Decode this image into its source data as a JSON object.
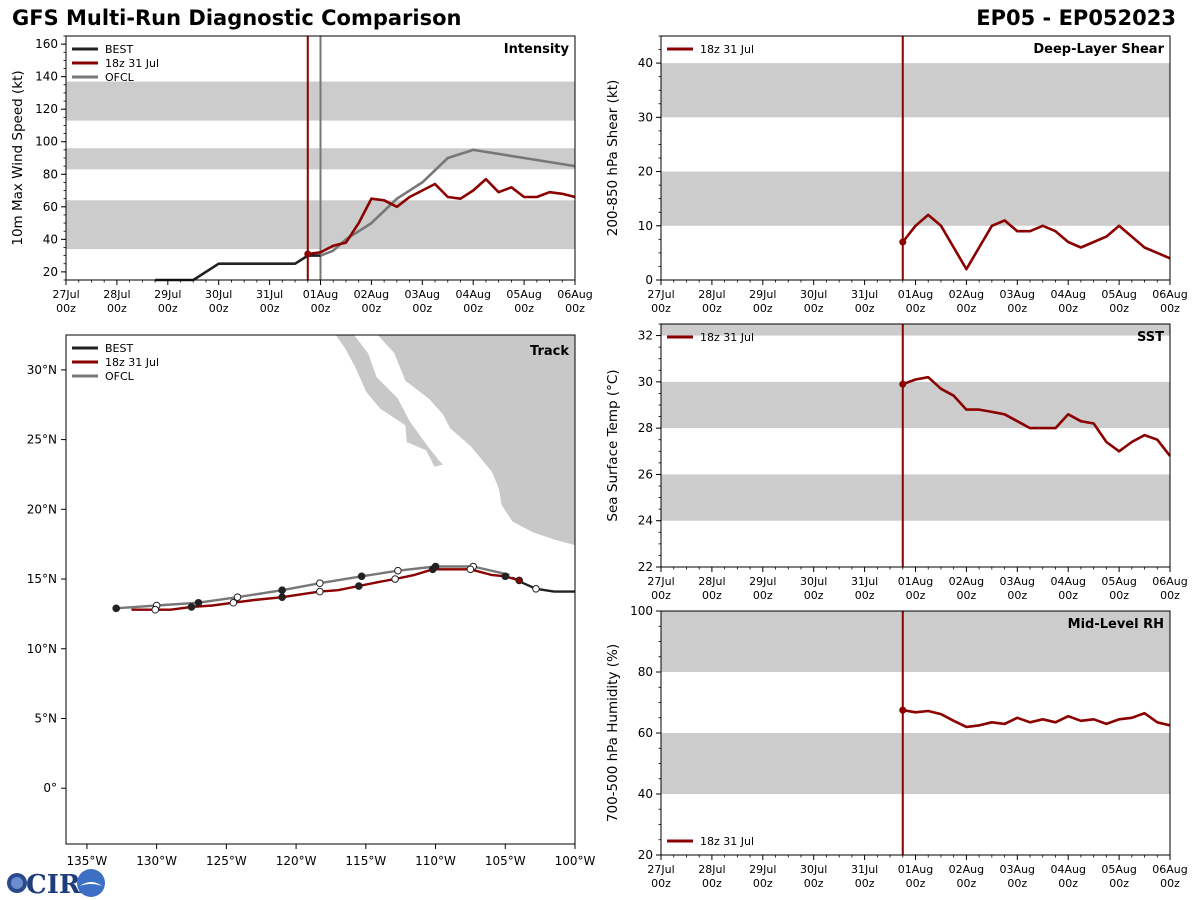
{
  "header": {
    "title": "GFS Multi-Run Diagnostic Comparison",
    "storm_id": "EP05 - EP052023"
  },
  "logo": {
    "text": "CIRA"
  },
  "colors": {
    "best": "#222222",
    "run": "#8b0000",
    "ofcl": "#777777",
    "band": "#cccccc",
    "land": "#c8c8c8"
  },
  "time_axis": {
    "ticks": [
      {
        "day": 0,
        "label": "27Jul",
        "hour": "00z"
      },
      {
        "day": 1,
        "label": "28Jul",
        "hour": "00z"
      },
      {
        "day": 2,
        "label": "29Jul",
        "hour": "00z"
      },
      {
        "day": 3,
        "label": "30Jul",
        "hour": "00z"
      },
      {
        "day": 4,
        "label": "31Jul",
        "hour": "00z"
      },
      {
        "day": 5,
        "label": "01Aug",
        "hour": "00z"
      },
      {
        "day": 6,
        "label": "02Aug",
        "hour": "00z"
      },
      {
        "day": 7,
        "label": "03Aug",
        "hour": "00z"
      },
      {
        "day": 8,
        "label": "04Aug",
        "hour": "00z"
      },
      {
        "day": 9,
        "label": "05Aug",
        "hour": "00z"
      },
      {
        "day": 10,
        "label": "06Aug",
        "hour": "00z"
      }
    ],
    "range_days": [
      0,
      10
    ]
  },
  "chart_data": [
    {
      "id": "intensity",
      "type": "line",
      "title": "Intensity",
      "xlabel": "",
      "ylabel": "10m Max Wind Speed (kt)",
      "ylim": [
        15,
        165
      ],
      "yticks": [
        20,
        40,
        60,
        80,
        100,
        120,
        140,
        160
      ],
      "bands": [
        [
          34,
          64
        ],
        [
          83,
          96
        ],
        [
          113,
          137
        ]
      ],
      "vlines": [
        {
          "x": 4.75,
          "color": "run"
        },
        {
          "x": 5.0,
          "color": "ofcl"
        }
      ],
      "legend": {
        "position": "top-left",
        "entries": [
          {
            "label": "BEST",
            "color": "best"
          },
          {
            "label": "18z 31 Jul",
            "color": "run"
          },
          {
            "label": "OFCL",
            "color": "ofcl"
          }
        ]
      },
      "series": [
        {
          "name": "BEST",
          "color": "best",
          "x": [
            1.75,
            2.5,
            3.0,
            3.5,
            4.0,
            4.5,
            4.75,
            5.0
          ],
          "y": [
            15,
            15,
            25,
            25,
            25,
            25,
            30,
            30
          ]
        },
        {
          "name": "OFCL",
          "color": "ofcl",
          "x": [
            5.0,
            5.25,
            5.5,
            6.0,
            6.5,
            7.0,
            7.5,
            8.0,
            9.0,
            10.0
          ],
          "y": [
            30,
            33,
            40,
            50,
            65,
            75,
            90,
            95,
            90,
            85
          ]
        },
        {
          "name": "18z 31 Jul",
          "color": "run",
          "marker_first": true,
          "x": [
            4.75,
            5.0,
            5.25,
            5.5,
            5.75,
            6.0,
            6.25,
            6.5,
            6.75,
            7.0,
            7.25,
            7.5,
            7.75,
            8.0,
            8.25,
            8.5,
            8.75,
            9.0,
            9.25,
            9.5,
            9.75,
            10.0
          ],
          "y": [
            31,
            32,
            36,
            38,
            50,
            65,
            64,
            60,
            66,
            70,
            74,
            66,
            65,
            70,
            77,
            69,
            72,
            66,
            66,
            69,
            68,
            66
          ]
        }
      ]
    },
    {
      "id": "shear",
      "type": "line",
      "title": "Deep-Layer Shear",
      "xlabel": "",
      "ylabel": "200-850 hPa Shear (kt)",
      "ylim": [
        0,
        45
      ],
      "yticks": [
        0,
        10,
        20,
        30,
        40
      ],
      "bands": [
        [
          10,
          20
        ],
        [
          30,
          40
        ]
      ],
      "vlines": [
        {
          "x": 4.75,
          "color": "run"
        }
      ],
      "legend": {
        "position": "top-left",
        "entries": [
          {
            "label": "18z 31 Jul",
            "color": "run"
          }
        ]
      },
      "series": [
        {
          "name": "18z 31 Jul",
          "color": "run",
          "marker_first": true,
          "x": [
            4.75,
            5.0,
            5.25,
            5.5,
            5.75,
            6.0,
            6.25,
            6.5,
            6.75,
            7.0,
            7.25,
            7.5,
            7.75,
            8.0,
            8.25,
            8.5,
            8.75,
            9.0,
            9.25,
            9.5,
            9.75,
            10.0
          ],
          "y": [
            7,
            10,
            12,
            10,
            6,
            2,
            6,
            10,
            11,
            9,
            9,
            10,
            9,
            7,
            6,
            7,
            8,
            10,
            8,
            6,
            5,
            4
          ]
        }
      ]
    },
    {
      "id": "sst",
      "type": "line",
      "title": "SST",
      "xlabel": "",
      "ylabel": "Sea Surface Temp (°C)",
      "ylim": [
        22,
        32.5
      ],
      "yticks": [
        22,
        24,
        26,
        28,
        30,
        32
      ],
      "bands": [
        [
          24,
          26
        ],
        [
          28,
          30
        ],
        [
          32,
          32.5
        ]
      ],
      "vlines": [
        {
          "x": 4.75,
          "color": "run"
        }
      ],
      "legend": {
        "position": "top-left",
        "entries": [
          {
            "label": "18z 31 Jul",
            "color": "run"
          }
        ]
      },
      "series": [
        {
          "name": "18z 31 Jul",
          "color": "run",
          "marker_first": true,
          "x": [
            4.75,
            5.0,
            5.25,
            5.5,
            5.75,
            6.0,
            6.25,
            6.5,
            6.75,
            7.0,
            7.25,
            7.5,
            7.75,
            8.0,
            8.25,
            8.5,
            8.75,
            9.0,
            9.25,
            9.5,
            9.75,
            10.0
          ],
          "y": [
            29.9,
            30.1,
            30.2,
            29.7,
            29.4,
            28.8,
            28.8,
            28.7,
            28.6,
            28.3,
            28.0,
            28.0,
            28.0,
            28.6,
            28.3,
            28.2,
            27.4,
            27.0,
            27.4,
            27.7,
            27.5,
            26.8
          ]
        }
      ]
    },
    {
      "id": "rh",
      "type": "line",
      "title": "Mid-Level RH",
      "xlabel": "",
      "ylabel": "700-500 hPa Humidity (%)",
      "ylim": [
        20,
        100
      ],
      "yticks": [
        20,
        40,
        60,
        80,
        100
      ],
      "bands": [
        [
          40,
          60
        ],
        [
          80,
          100
        ]
      ],
      "vlines": [
        {
          "x": 4.75,
          "color": "run"
        }
      ],
      "legend": {
        "position": "bottom-left",
        "entries": [
          {
            "label": "18z 31 Jul",
            "color": "run"
          }
        ]
      },
      "series": [
        {
          "name": "18z 31 Jul",
          "color": "run",
          "marker_first": true,
          "x": [
            4.75,
            5.0,
            5.25,
            5.5,
            5.75,
            6.0,
            6.25,
            6.5,
            6.75,
            7.0,
            7.25,
            7.5,
            7.75,
            8.0,
            8.25,
            8.5,
            8.75,
            9.0,
            9.25,
            9.5,
            9.75,
            10.0
          ],
          "y": [
            67.5,
            66.8,
            67.2,
            66.2,
            64,
            62,
            62.5,
            63.5,
            63,
            65,
            63.5,
            64.5,
            63.5,
            65.5,
            64,
            64.5,
            63,
            64.5,
            65,
            66.5,
            63.5,
            62.5
          ]
        }
      ]
    },
    {
      "id": "track",
      "type": "line",
      "title": "Track",
      "xlabel": "",
      "ylabel": "",
      "xlim": [
        -136.5,
        -100
      ],
      "ylim": [
        -4,
        32.5
      ],
      "xticks": [
        -135,
        -130,
        -125,
        -120,
        -115,
        -110,
        -105,
        -100
      ],
      "xtick_labels": [
        "135°W",
        "130°W",
        "125°W",
        "120°W",
        "115°W",
        "110°W",
        "105°W",
        "100°W"
      ],
      "yticks": [
        0,
        5,
        10,
        15,
        20,
        25,
        30
      ],
      "ytick_labels": [
        "0°",
        "5°N",
        "10°N",
        "15°N",
        "20°N",
        "25°N",
        "30°N"
      ],
      "legend": {
        "position": "top-left",
        "entries": [
          {
            "label": "BEST",
            "color": "best"
          },
          {
            "label": "18z 31 Jul",
            "color": "run"
          },
          {
            "label": "OFCL",
            "color": "ofcl"
          }
        ]
      },
      "series": [
        {
          "name": "BEST",
          "color": "best",
          "lon": [
            -100.0,
            -101.5,
            -102.8,
            -103.7,
            -104.5
          ],
          "lat": [
            14.1,
            14.1,
            14.3,
            14.7,
            15.1
          ],
          "markers": [
            {
              "lon": -102.8,
              "lat": 14.3,
              "fill": "white"
            }
          ]
        },
        {
          "name": "OFCL",
          "color": "ofcl",
          "lon": [
            -104.7,
            -107.3,
            -110.0,
            -112.7,
            -115.3,
            -118.3,
            -121.0,
            -124.2,
            -127.0,
            -130.0,
            -132.9
          ],
          "lat": [
            15.3,
            15.9,
            15.9,
            15.6,
            15.2,
            14.7,
            14.2,
            13.7,
            13.3,
            13.1,
            12.9
          ],
          "markers": [
            {
              "lon": -107.3,
              "lat": 15.9,
              "fill": "white"
            },
            {
              "lon": -110.0,
              "lat": 15.9,
              "fill": "black"
            },
            {
              "lon": -112.7,
              "lat": 15.6,
              "fill": "white"
            },
            {
              "lon": -115.3,
              "lat": 15.2,
              "fill": "black"
            },
            {
              "lon": -118.3,
              "lat": 14.7,
              "fill": "white"
            },
            {
              "lon": -121.0,
              "lat": 14.2,
              "fill": "black"
            },
            {
              "lon": -124.2,
              "lat": 13.7,
              "fill": "white"
            },
            {
              "lon": -127.0,
              "lat": 13.3,
              "fill": "black"
            },
            {
              "lon": -130.0,
              "lat": 13.1,
              "fill": "white"
            },
            {
              "lon": -132.9,
              "lat": 12.9,
              "fill": "black"
            }
          ]
        },
        {
          "name": "18z 31 Jul",
          "color": "run",
          "lon": [
            -104.0,
            -105.0,
            -106.0,
            -107.5,
            -108.5,
            -110.2,
            -111.5,
            -112.9,
            -114.0,
            -115.5,
            -117.0,
            -118.3,
            -119.7,
            -121.0,
            -123.0,
            -124.5,
            -126.0,
            -127.5,
            -129.0,
            -130.1,
            -131.8
          ],
          "lat": [
            14.9,
            15.2,
            15.3,
            15.7,
            15.7,
            15.7,
            15.3,
            15.0,
            14.8,
            14.5,
            14.2,
            14.1,
            13.9,
            13.7,
            13.5,
            13.3,
            13.1,
            13.0,
            12.8,
            12.8,
            12.8
          ],
          "markers": [
            {
              "lon": -104.0,
              "lat": 14.9,
              "fill": "run"
            },
            {
              "lon": -105.0,
              "lat": 15.2,
              "fill": "black"
            },
            {
              "lon": -107.5,
              "lat": 15.7,
              "fill": "white"
            },
            {
              "lon": -110.2,
              "lat": 15.7,
              "fill": "black"
            },
            {
              "lon": -112.9,
              "lat": 15.0,
              "fill": "white"
            },
            {
              "lon": -115.5,
              "lat": 14.5,
              "fill": "black"
            },
            {
              "lon": -118.3,
              "lat": 14.1,
              "fill": "white"
            },
            {
              "lon": -121.0,
              "lat": 13.7,
              "fill": "black"
            },
            {
              "lon": -124.5,
              "lat": 13.3,
              "fill": "white"
            },
            {
              "lon": -127.5,
              "lat": 13.0,
              "fill": "black"
            },
            {
              "lon": -130.1,
              "lat": 12.8,
              "fill": "white"
            }
          ]
        }
      ],
      "land": [
        [
          [
            -112.5,
            32.5
          ],
          [
            -100,
            32.5
          ],
          [
            -100,
            17.4
          ],
          [
            -101.5,
            17.8
          ],
          [
            -103,
            18.3
          ],
          [
            -104.5,
            19.1
          ],
          [
            -105.3,
            20.3
          ],
          [
            -105.5,
            21.5
          ],
          [
            -106,
            22.7
          ],
          [
            -107.5,
            24.5
          ],
          [
            -109.0,
            25.8
          ],
          [
            -109.5,
            26.8
          ],
          [
            -110.5,
            27.9
          ],
          [
            -112.2,
            29.2
          ],
          [
            -113.0,
            31.2
          ],
          [
            -114.2,
            32.5
          ]
        ],
        [
          [
            -117.2,
            32.5
          ],
          [
            -115.8,
            32.5
          ],
          [
            -114.8,
            31.2
          ],
          [
            -114.2,
            29.5
          ],
          [
            -112.7,
            28.0
          ],
          [
            -111.8,
            26.3
          ],
          [
            -110.5,
            24.5
          ],
          [
            -109.7,
            23.5
          ],
          [
            -109.4,
            23.2
          ],
          [
            -110.1,
            23.0
          ],
          [
            -110.7,
            24.2
          ],
          [
            -112.1,
            24.8
          ],
          [
            -112.2,
            26.0
          ],
          [
            -114.0,
            27.2
          ],
          [
            -115.0,
            28.4
          ],
          [
            -115.8,
            30.2
          ],
          [
            -116.5,
            31.5
          ]
        ]
      ]
    }
  ]
}
